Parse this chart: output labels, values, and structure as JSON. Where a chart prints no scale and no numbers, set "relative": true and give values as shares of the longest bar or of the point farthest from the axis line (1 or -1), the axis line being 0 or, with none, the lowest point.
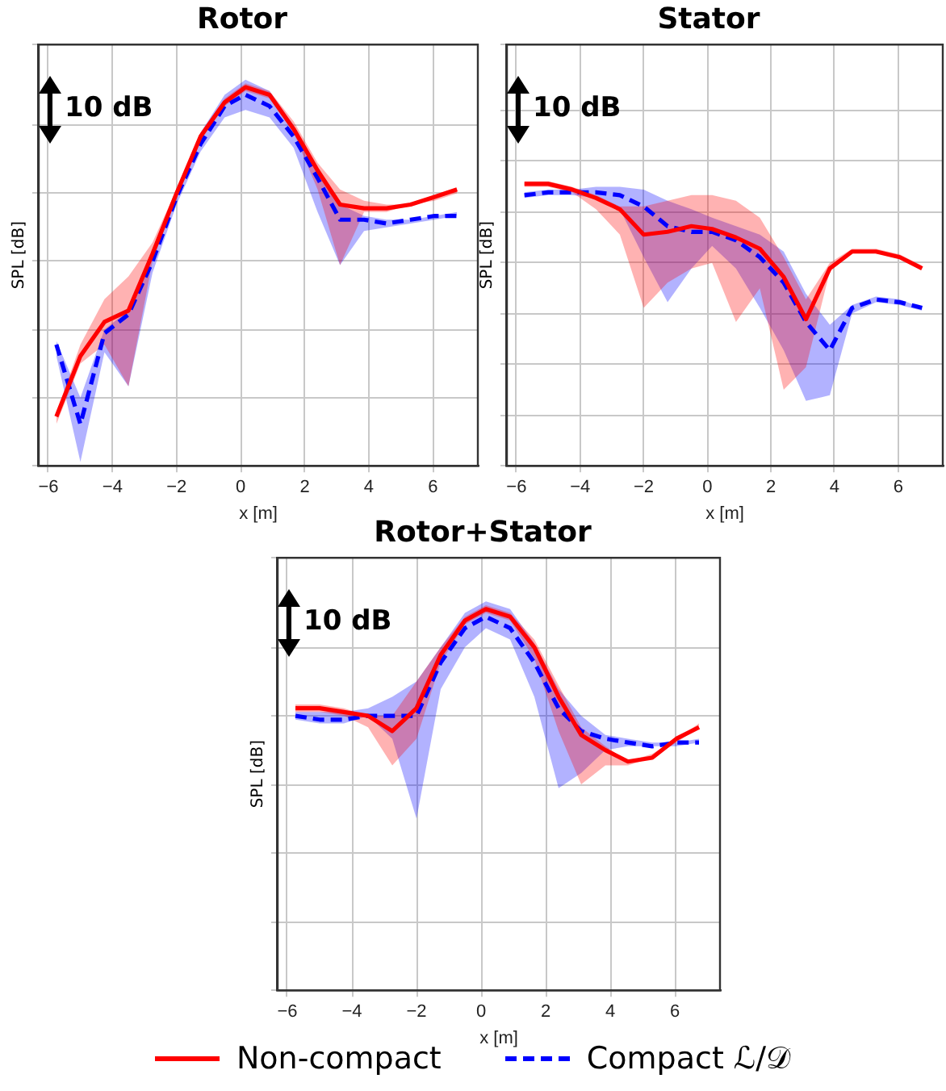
{
  "chart_data": [
    {
      "type": "line",
      "title": "Rotor",
      "xlabel": "x [m]",
      "ylabel": "SPL [dB]",
      "relative": true,
      "xlim": [
        -6.3,
        7.4
      ],
      "xticks": [
        -6,
        -4,
        -2,
        0,
        2,
        4,
        6
      ],
      "grid": true,
      "marker": "none",
      "annotations": [
        "10 dB"
      ],
      "x": [
        -5.75,
        -5,
        -4.25,
        -3.5,
        -2.75,
        -2,
        -1.25,
        -0.5,
        0.15,
        0.9,
        1.65,
        2.4,
        3.1,
        3.85,
        4.55,
        5.3,
        6.05,
        6.75
      ],
      "series": [
        {
          "color": "#ff0000",
          "line_style": "solid",
          "values": [
            0.13,
            0.29,
            0.38,
            0.41,
            0.56,
            0.72,
            0.87,
            0.96,
            1.0,
            0.98,
            0.89,
            0.78,
            0.69,
            0.68,
            0.68,
            0.69,
            0.71,
            0.73
          ],
          "lower": [
            0.11,
            0.27,
            0.32,
            0.21,
            0.54,
            0.71,
            0.86,
            0.95,
            0.99,
            0.97,
            0.88,
            0.73,
            0.53,
            0.67,
            0.67,
            0.69,
            0.7,
            0.72
          ],
          "upper": [
            0.14,
            0.32,
            0.44,
            0.5,
            0.59,
            0.73,
            0.88,
            0.97,
            1.01,
            0.99,
            0.91,
            0.8,
            0.73,
            0.7,
            0.69,
            0.69,
            0.71,
            0.73
          ]
        },
        {
          "color": "#0000ff",
          "line_style": "dashed",
          "values": [
            0.32,
            0.11,
            0.35,
            0.4,
            0.54,
            0.71,
            0.85,
            0.95,
            0.98,
            0.95,
            0.87,
            0.76,
            0.65,
            0.65,
            0.64,
            0.65,
            0.66,
            0.66
          ],
          "lower": [
            0.29,
            0.01,
            0.3,
            0.21,
            0.51,
            0.69,
            0.83,
            0.92,
            0.94,
            0.92,
            0.84,
            0.67,
            0.53,
            0.62,
            0.63,
            0.64,
            0.65,
            0.66
          ],
          "upper": [
            0.33,
            0.18,
            0.36,
            0.41,
            0.55,
            0.73,
            0.88,
            0.98,
            1.02,
            0.99,
            0.9,
            0.78,
            0.69,
            0.66,
            0.65,
            0.65,
            0.66,
            0.67
          ]
        }
      ]
    },
    {
      "type": "line",
      "title": "Stator",
      "xlabel": "x [m]",
      "ylabel": "SPL [dB]",
      "relative": true,
      "xlim": [
        -6.3,
        7.4
      ],
      "xticks": [
        -6,
        -4,
        -2,
        0,
        2,
        4,
        6
      ],
      "grid": true,
      "marker": "none",
      "annotations": [
        "10 dB"
      ],
      "x": [
        -5.75,
        -5,
        -4.25,
        -3.5,
        -2.75,
        -2,
        -1.25,
        -0.5,
        0.15,
        0.9,
        1.65,
        2.4,
        3.1,
        3.85,
        4.55,
        5.3,
        6.05,
        6.75
      ],
      "series": [
        {
          "color": "#ff0000",
          "line_style": "solid",
          "values": [
            1.0,
            1.0,
            0.98,
            0.95,
            0.91,
            0.82,
            0.83,
            0.85,
            0.84,
            0.81,
            0.77,
            0.67,
            0.52,
            0.7,
            0.76,
            0.76,
            0.74,
            0.7
          ],
          "lower": [
            0.99,
            0.99,
            0.97,
            0.91,
            0.82,
            0.56,
            0.65,
            0.7,
            0.72,
            0.51,
            0.63,
            0.27,
            0.35,
            0.69,
            0.76,
            0.76,
            0.74,
            0.7
          ],
          "upper": [
            1.01,
            1.01,
            0.99,
            0.96,
            0.92,
            0.92,
            0.94,
            0.96,
            0.96,
            0.94,
            0.88,
            0.74,
            0.59,
            0.72,
            0.77,
            0.77,
            0.75,
            0.71
          ]
        },
        {
          "color": "#0000ff",
          "line_style": "dashed",
          "values": [
            0.96,
            0.97,
            0.97,
            0.97,
            0.96,
            0.92,
            0.85,
            0.83,
            0.83,
            0.8,
            0.74,
            0.65,
            0.51,
            0.41,
            0.56,
            0.59,
            0.58,
            0.56
          ],
          "lower": [
            0.95,
            0.96,
            0.96,
            0.95,
            0.91,
            0.74,
            0.58,
            0.7,
            0.78,
            0.7,
            0.56,
            0.41,
            0.23,
            0.25,
            0.54,
            0.58,
            0.57,
            0.55
          ],
          "upper": [
            0.97,
            0.98,
            0.98,
            0.99,
            0.99,
            0.98,
            0.94,
            0.91,
            0.88,
            0.85,
            0.82,
            0.76,
            0.61,
            0.5,
            0.57,
            0.6,
            0.59,
            0.56
          ]
        }
      ]
    },
    {
      "type": "line",
      "title": "Rotor+Stator",
      "xlabel": "x [m]",
      "ylabel": "SPL [dB]",
      "relative": true,
      "xlim": [
        -6.3,
        7.4
      ],
      "xticks": [
        -6,
        -4,
        -2,
        0,
        2,
        4,
        6
      ],
      "grid": true,
      "marker": "none",
      "annotations": [
        "10 dB"
      ],
      "legend": "bottom",
      "x": [
        -5.75,
        -5,
        -4.25,
        -3.5,
        -2.75,
        -2,
        -1.25,
        -0.5,
        0.15,
        0.9,
        1.65,
        2.4,
        3.1,
        3.85,
        4.55,
        5.3,
        6.05,
        6.75
      ],
      "series": [
        {
          "name": "Non-compact",
          "color": "#ff0000",
          "line_style": "solid",
          "values": [
            0.74,
            0.74,
            0.73,
            0.72,
            0.68,
            0.74,
            0.88,
            0.97,
            1.0,
            0.98,
            0.9,
            0.77,
            0.67,
            0.63,
            0.6,
            0.61,
            0.66,
            0.69
          ],
          "lower": [
            0.73,
            0.73,
            0.72,
            0.69,
            0.59,
            0.66,
            0.86,
            0.96,
            0.99,
            0.97,
            0.87,
            0.68,
            0.54,
            0.59,
            0.59,
            0.61,
            0.65,
            0.69
          ],
          "upper": [
            0.75,
            0.75,
            0.74,
            0.72,
            0.72,
            0.81,
            0.9,
            0.98,
            1.01,
            0.99,
            0.92,
            0.8,
            0.69,
            0.64,
            0.6,
            0.62,
            0.66,
            0.7
          ]
        },
        {
          "name": "Compact ℒ/𝒟",
          "color": "#0000ff",
          "line_style": "dashed",
          "values": [
            0.72,
            0.71,
            0.71,
            0.72,
            0.72,
            0.72,
            0.86,
            0.95,
            0.98,
            0.95,
            0.86,
            0.74,
            0.68,
            0.66,
            0.65,
            0.64,
            0.65,
            0.65
          ],
          "lower": [
            0.71,
            0.7,
            0.7,
            0.72,
            0.66,
            0.45,
            0.79,
            0.9,
            0.95,
            0.92,
            0.77,
            0.53,
            0.57,
            0.63,
            0.64,
            0.64,
            0.64,
            0.65
          ],
          "upper": [
            0.73,
            0.73,
            0.73,
            0.74,
            0.77,
            0.81,
            0.9,
            0.99,
            1.02,
            1.0,
            0.91,
            0.79,
            0.72,
            0.67,
            0.66,
            0.65,
            0.65,
            0.66
          ]
        }
      ]
    }
  ]
}
